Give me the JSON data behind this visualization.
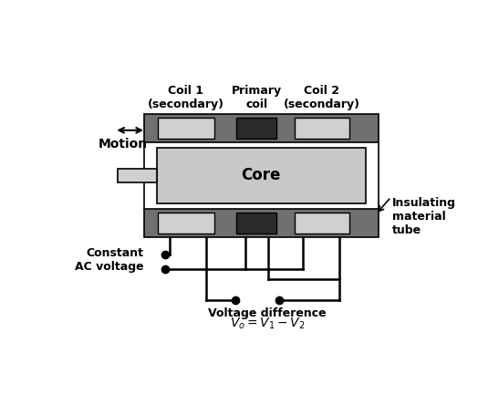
{
  "fig_width": 5.24,
  "fig_height": 4.33,
  "dpi": 100,
  "bg_color": "#ffffff",
  "colors": {
    "outer_dark": "#707070",
    "light_gray": "#d0d0d0",
    "dark_coil": "#2a2a2a",
    "white": "#ffffff",
    "black": "#000000",
    "core_gray": "#c8c8c8"
  },
  "labels": {
    "coil1": "Coil 1\n(secondary)",
    "primary": "Primary\ncoil",
    "coil2": "Coil 2\n(secondary)",
    "motion": "Motion",
    "core": "Core",
    "constant_ac": "Constant\nAC voltage",
    "insulating": "Insulating\nmaterial\ntube",
    "voltage_diff": "Voltage difference",
    "voltage_formula": "$V_o = V_1 - V_2$"
  }
}
